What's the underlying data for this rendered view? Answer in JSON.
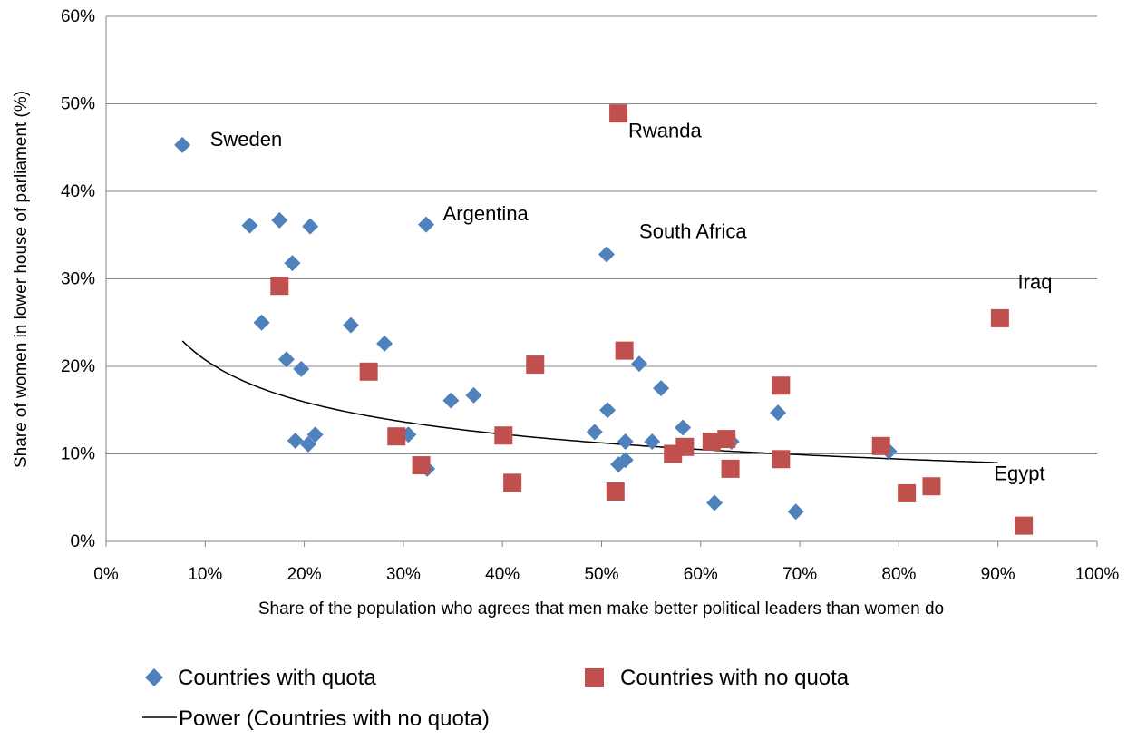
{
  "chart_data": {
    "type": "scatter",
    "xlabel": "Share of the population who agrees that men make better political leaders than women do",
    "ylabel": "Share of women in lower house of parliament (%)",
    "xlim": [
      0,
      1
    ],
    "ylim": [
      0,
      0.6
    ],
    "x_ticks": [
      "0%",
      "10%",
      "20%",
      "30%",
      "40%",
      "50%",
      "60%",
      "70%",
      "80%",
      "90%",
      "100%"
    ],
    "y_ticks": [
      "0%",
      "10%",
      "20%",
      "30%",
      "40%",
      "50%",
      "60%"
    ],
    "grid": "horizontal",
    "legend_position": "bottom",
    "colors": {
      "quota": "#4F81BD",
      "no_quota": "#C0504D",
      "trend": "#000000"
    },
    "series": [
      {
        "name": "Countries with quota",
        "marker": "diamond",
        "points": [
          [
            0.077,
            0.453
          ],
          [
            0.145,
            0.361
          ],
          [
            0.175,
            0.367
          ],
          [
            0.206,
            0.36
          ],
          [
            0.188,
            0.318
          ],
          [
            0.157,
            0.25
          ],
          [
            0.182,
            0.208
          ],
          [
            0.197,
            0.197
          ],
          [
            0.191,
            0.115
          ],
          [
            0.204,
            0.111
          ],
          [
            0.211,
            0.122
          ],
          [
            0.247,
            0.247
          ],
          [
            0.281,
            0.226
          ],
          [
            0.305,
            0.122
          ],
          [
            0.324,
            0.083
          ],
          [
            0.323,
            0.362
          ],
          [
            0.348,
            0.161
          ],
          [
            0.371,
            0.167
          ],
          [
            0.493,
            0.125
          ],
          [
            0.506,
            0.15
          ],
          [
            0.505,
            0.328
          ],
          [
            0.517,
            0.088
          ],
          [
            0.524,
            0.114
          ],
          [
            0.524,
            0.093
          ],
          [
            0.538,
            0.203
          ],
          [
            0.551,
            0.114
          ],
          [
            0.56,
            0.175
          ],
          [
            0.582,
            0.13
          ],
          [
            0.614,
            0.044
          ],
          [
            0.631,
            0.114
          ],
          [
            0.678,
            0.147
          ],
          [
            0.696,
            0.034
          ],
          [
            0.79,
            0.103
          ]
        ]
      },
      {
        "name": "Countries with no quota",
        "marker": "square",
        "points": [
          [
            0.175,
            0.292
          ],
          [
            0.265,
            0.194
          ],
          [
            0.293,
            0.12
          ],
          [
            0.318,
            0.087
          ],
          [
            0.401,
            0.121
          ],
          [
            0.41,
            0.067
          ],
          [
            0.433,
            0.202
          ],
          [
            0.517,
            0.489
          ],
          [
            0.523,
            0.218
          ],
          [
            0.514,
            0.057
          ],
          [
            0.572,
            0.1
          ],
          [
            0.584,
            0.108
          ],
          [
            0.611,
            0.114
          ],
          [
            0.626,
            0.117
          ],
          [
            0.63,
            0.083
          ],
          [
            0.681,
            0.178
          ],
          [
            0.681,
            0.094
          ],
          [
            0.782,
            0.109
          ],
          [
            0.808,
            0.055
          ],
          [
            0.833,
            0.063
          ],
          [
            0.902,
            0.255
          ],
          [
            0.926,
            0.018
          ]
        ]
      }
    ],
    "trendline": {
      "name": "Power (Countries with no quota)",
      "type": "power",
      "a": 0.0865,
      "b": -0.38,
      "x_range": [
        0.077,
        0.9
      ]
    },
    "annotations": [
      {
        "text": "Sweden",
        "x": 0.105,
        "y": 0.46
      },
      {
        "text": "Rwanda",
        "x": 0.527,
        "y": 0.47
      },
      {
        "text": "Argentina",
        "x": 0.34,
        "y": 0.375
      },
      {
        "text": "South Africa",
        "x": 0.538,
        "y": 0.355
      },
      {
        "text": "Iraq",
        "x": 0.92,
        "y": 0.297
      },
      {
        "text": "Egypt",
        "x": 0.896,
        "y": 0.078
      }
    ]
  }
}
